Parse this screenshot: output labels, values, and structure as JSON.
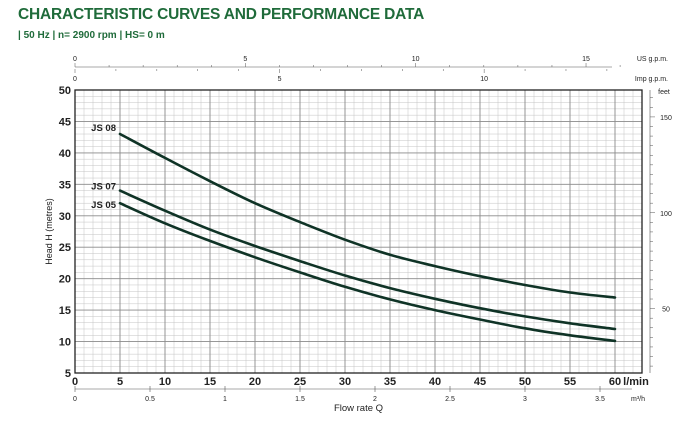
{
  "header": {
    "title": "CHARACTERISTIC CURVES AND PERFORMANCE DATA",
    "subtitle": "| 50 Hz | n= 2900 rpm | HS= 0 m"
  },
  "colors": {
    "accent": "#1f6b3a",
    "curve": "#0f3326",
    "grid_major": "#8a8a8a",
    "grid_minor": "#c4c4c4",
    "text": "#222222"
  },
  "chart_data": {
    "type": "line",
    "title": "CHARACTERISTIC CURVES AND PERFORMANCE DATA",
    "subtitle": "| 50 Hz | n= 2900 rpm | HS= 0 m",
    "xlabel": "Flow rate Q",
    "ylabel": "Head H (metres)",
    "x_unit": "l/min",
    "xlim": [
      0,
      63
    ],
    "ylim": [
      5,
      50
    ],
    "grid": true,
    "x_ticks": [
      0,
      5,
      10,
      15,
      20,
      25,
      30,
      35,
      40,
      45,
      50,
      55,
      60
    ],
    "y_ticks": [
      5,
      10,
      15,
      20,
      25,
      30,
      35,
      40,
      45,
      50
    ],
    "series": [
      {
        "name": "JS 08",
        "x": [
          5,
          10,
          15,
          20,
          25,
          30,
          35,
          40,
          45,
          50,
          55,
          60
        ],
        "y": [
          43,
          39.2,
          35.5,
          32,
          29,
          26.2,
          23.8,
          22,
          20.4,
          19,
          17.8,
          17
        ]
      },
      {
        "name": "JS 07",
        "x": [
          5,
          10,
          15,
          20,
          25,
          30,
          35,
          40,
          45,
          50,
          55,
          60
        ],
        "y": [
          34,
          30.8,
          27.8,
          25.2,
          22.8,
          20.5,
          18.5,
          16.8,
          15.3,
          14,
          12.9,
          12
        ]
      },
      {
        "name": "JS 05",
        "x": [
          5,
          10,
          15,
          20,
          25,
          30,
          35,
          40,
          45,
          50,
          55,
          60
        ],
        "y": [
          32,
          28.8,
          26,
          23.4,
          21,
          18.7,
          16.7,
          15,
          13.5,
          12.1,
          11,
          10.1
        ]
      }
    ],
    "secondary_axes": {
      "right_feet": {
        "label": "feet",
        "ticks": [
          50,
          100,
          150
        ]
      },
      "top_us_gpm": {
        "label": "US g.p.m.",
        "ticks": [
          0,
          5,
          10,
          15
        ]
      },
      "top_imp_gpm": {
        "label": "Imp g.p.m.",
        "ticks": [
          0,
          5,
          10
        ]
      },
      "bottom_m3h": {
        "label": "m³/h",
        "ticks": [
          "0",
          "0.5",
          "1",
          "1.5",
          "2",
          "2.5",
          "3",
          "3.5"
        ]
      }
    }
  }
}
